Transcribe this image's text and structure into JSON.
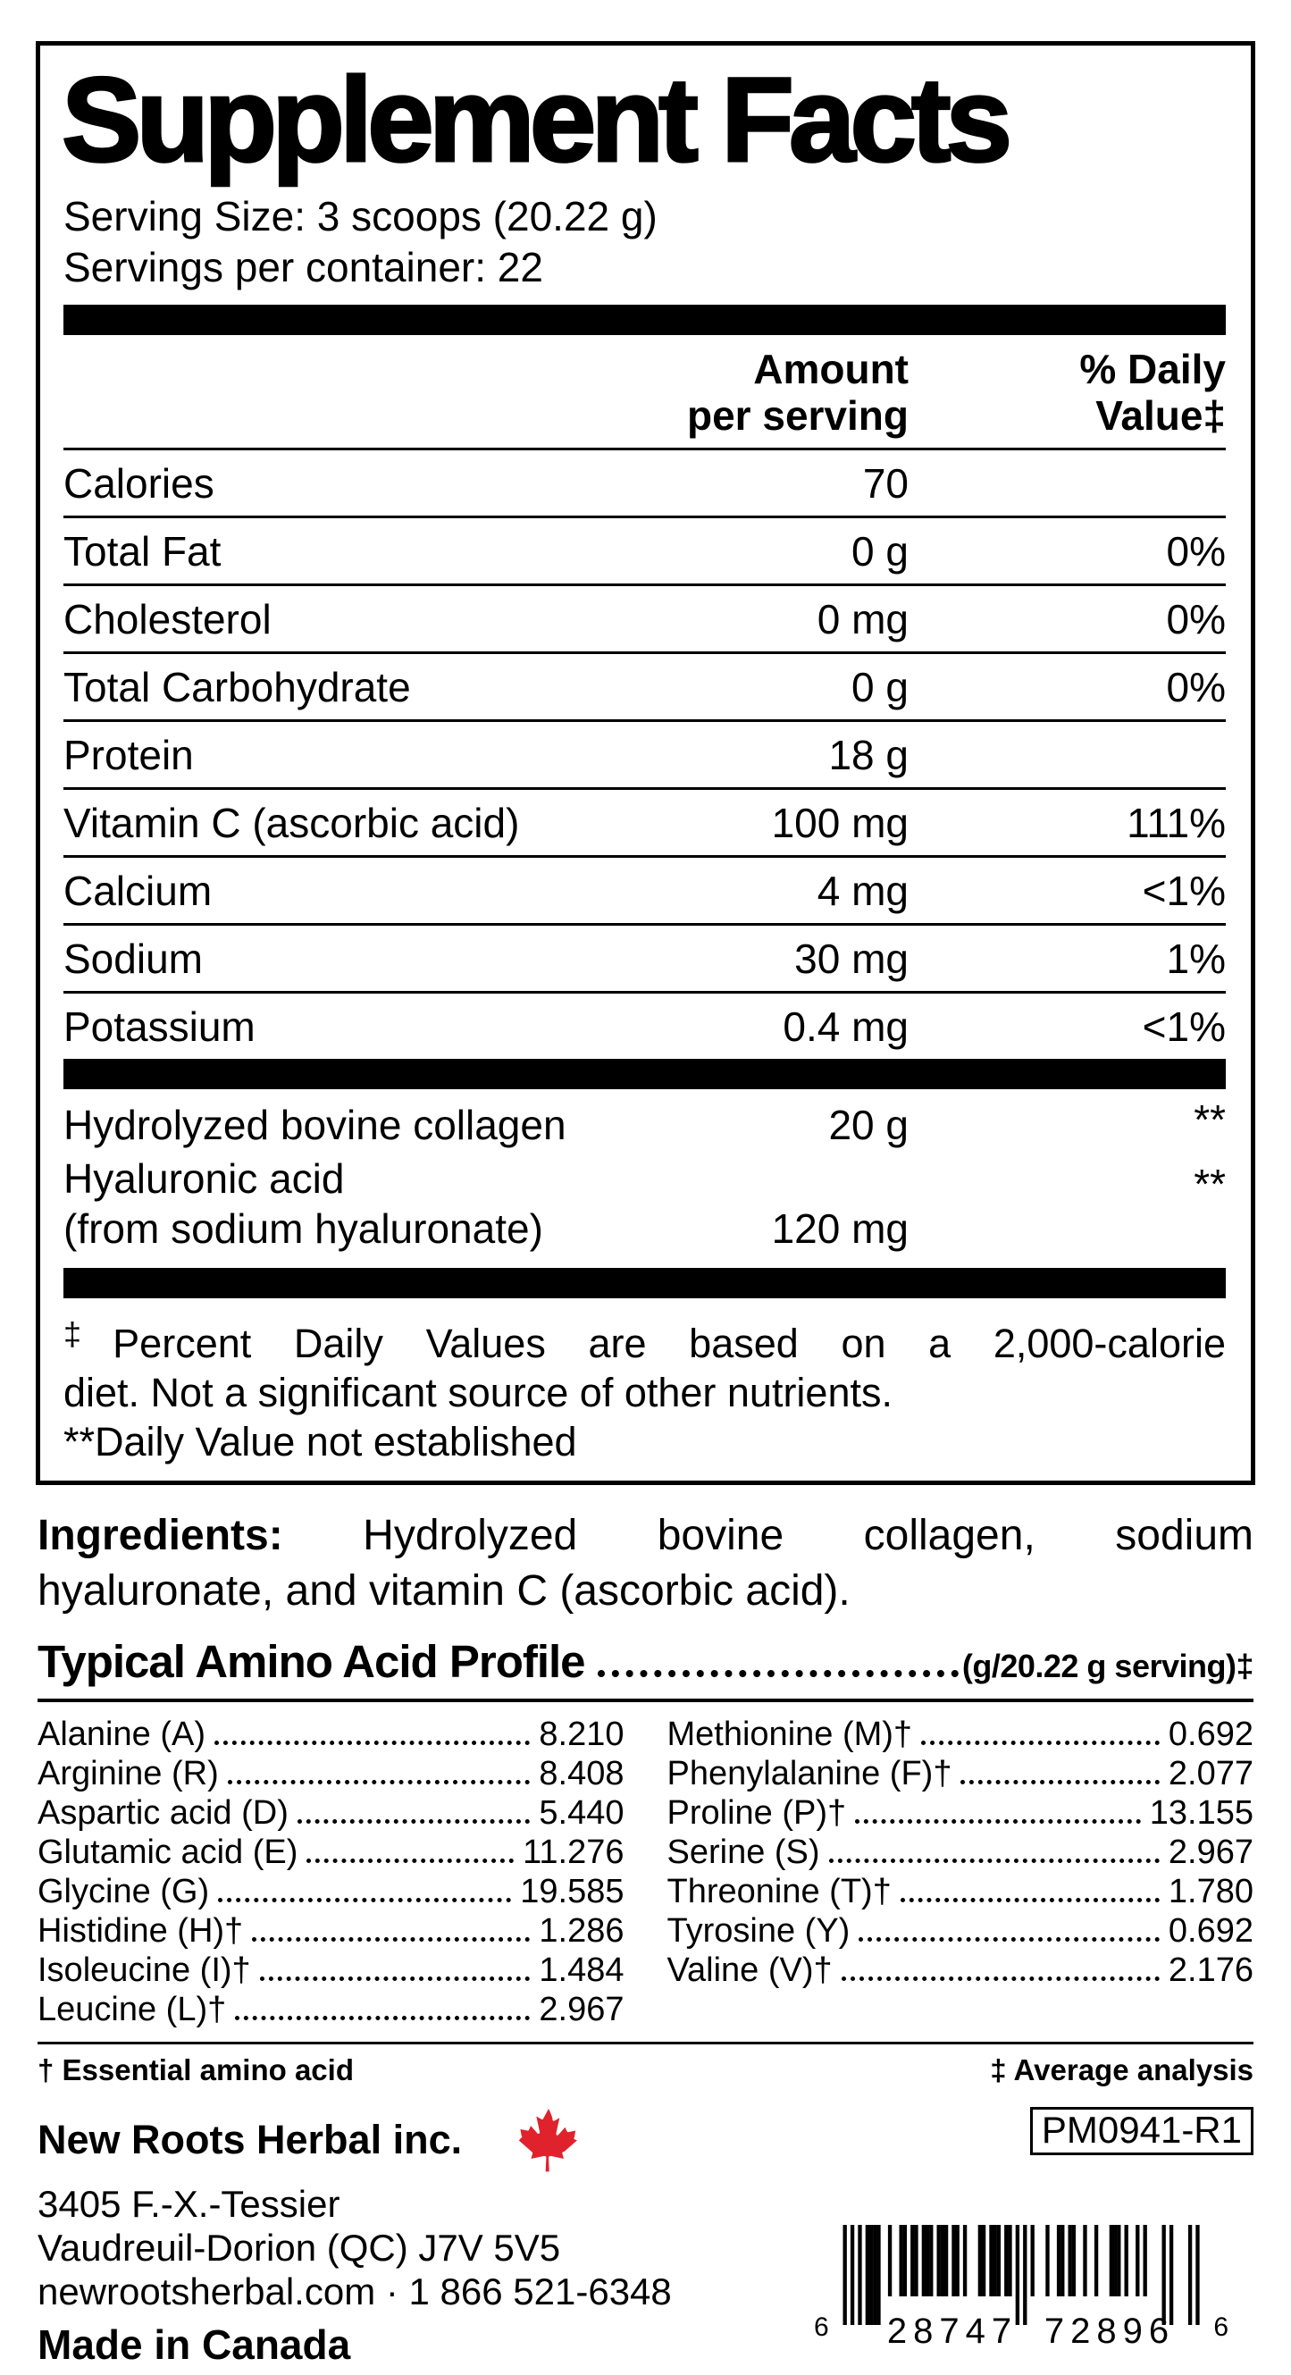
{
  "panel": {
    "title": "Supplement Facts",
    "serving_size": "Serving Size: 3 scoops (20.22 g)",
    "servings_per_container": "Servings per container: 22",
    "col_amount": [
      "Amount",
      "per serving"
    ],
    "col_dv": [
      "% Daily",
      "Value‡"
    ],
    "rows": [
      {
        "label": "Calories",
        "amount": "70",
        "dv": ""
      },
      {
        "label": "Total Fat",
        "amount": "0 g",
        "dv": "0%"
      },
      {
        "label": "Cholesterol",
        "amount": "0 mg",
        "dv": "0%"
      },
      {
        "label": "Total Carbohydrate",
        "amount": "0 g",
        "dv": "0%"
      },
      {
        "label": "Protein",
        "amount": "18 g",
        "dv": ""
      },
      {
        "label": "Vitamin C (ascorbic acid)",
        "amount": "100 mg",
        "dv": "111%"
      },
      {
        "label": "Calcium",
        "amount": "4 mg",
        "dv": "<1%"
      },
      {
        "label": "Sodium",
        "amount": "30 mg",
        "dv": "1%"
      },
      {
        "label": "Potassium",
        "amount": "0.4 mg",
        "dv": "<1%"
      }
    ],
    "extra_rows": [
      {
        "label": "Hydrolyzed bovine collagen",
        "amount": "20 g",
        "dv": "**"
      },
      {
        "label": "Hyaluronic acid",
        "label2": "(from sodium hyaluronate)",
        "amount": "120 mg",
        "dv": "**"
      }
    ],
    "footnote1_marker": "‡",
    "footnote1_line1": "Percent Daily Values are based on a 2,000-calorie",
    "footnote1_line2": "diet. Not a significant source of other nutrients.",
    "footnote2_marker": "**",
    "footnote2_text": "Daily Value not established"
  },
  "ingredients": {
    "label": "Ingredients:",
    "line1_rest": " Hydrolyzed bovine collagen, sodium",
    "line2": "hyaluronate, and vitamin C (ascorbic acid)."
  },
  "amino": {
    "heading": "Typical Amino Acid Profile",
    "unit": "(g/20.22 g serving)‡",
    "left": [
      {
        "name": "Alanine (A)",
        "value": "8.210"
      },
      {
        "name": "Arginine (R)",
        "value": "8.408"
      },
      {
        "name": "Aspartic acid (D)",
        "value": "5.440"
      },
      {
        "name": "Glutamic acid (E)",
        "value": "11.276"
      },
      {
        "name": "Glycine (G)",
        "value": "19.585"
      },
      {
        "name": "Histidine (H)†",
        "value": "1.286"
      },
      {
        "name": "Isoleucine (I)†",
        "value": "1.484"
      },
      {
        "name": "Leucine (L)†",
        "value": "2.967"
      }
    ],
    "right": [
      {
        "name": "Methionine (M)†",
        "value": "0.692"
      },
      {
        "name": "Phenylalanine (F)†",
        "value": "2.077"
      },
      {
        "name": "Proline (P)†",
        "value": "13.155"
      },
      {
        "name": "Serine (S)",
        "value": "2.967"
      },
      {
        "name": "Threonine (T)†",
        "value": "1.780"
      },
      {
        "name": "Tyrosine (Y)",
        "value": "0.692"
      },
      {
        "name": "Valine (V)†",
        "value": "2.176"
      }
    ],
    "footnote_left": "† Essential amino acid",
    "footnote_right": "‡ Average analysis"
  },
  "company": {
    "name": "New Roots Herbal inc.",
    "address1": "3405 F.-X.-Tessier",
    "address2": "Vaudreuil-Dorion (QC) J7V 5V5",
    "contact": "newrootsherbal.com · 1 866 521-6348",
    "made_in": "Made in Canada",
    "code": "PM0941-R1",
    "maple_leaf_color": "#e0222d"
  },
  "barcode": {
    "digits": "628747728966",
    "left_digit": "6",
    "group1": "28747",
    "group2": "72896",
    "right_digit": "6"
  }
}
